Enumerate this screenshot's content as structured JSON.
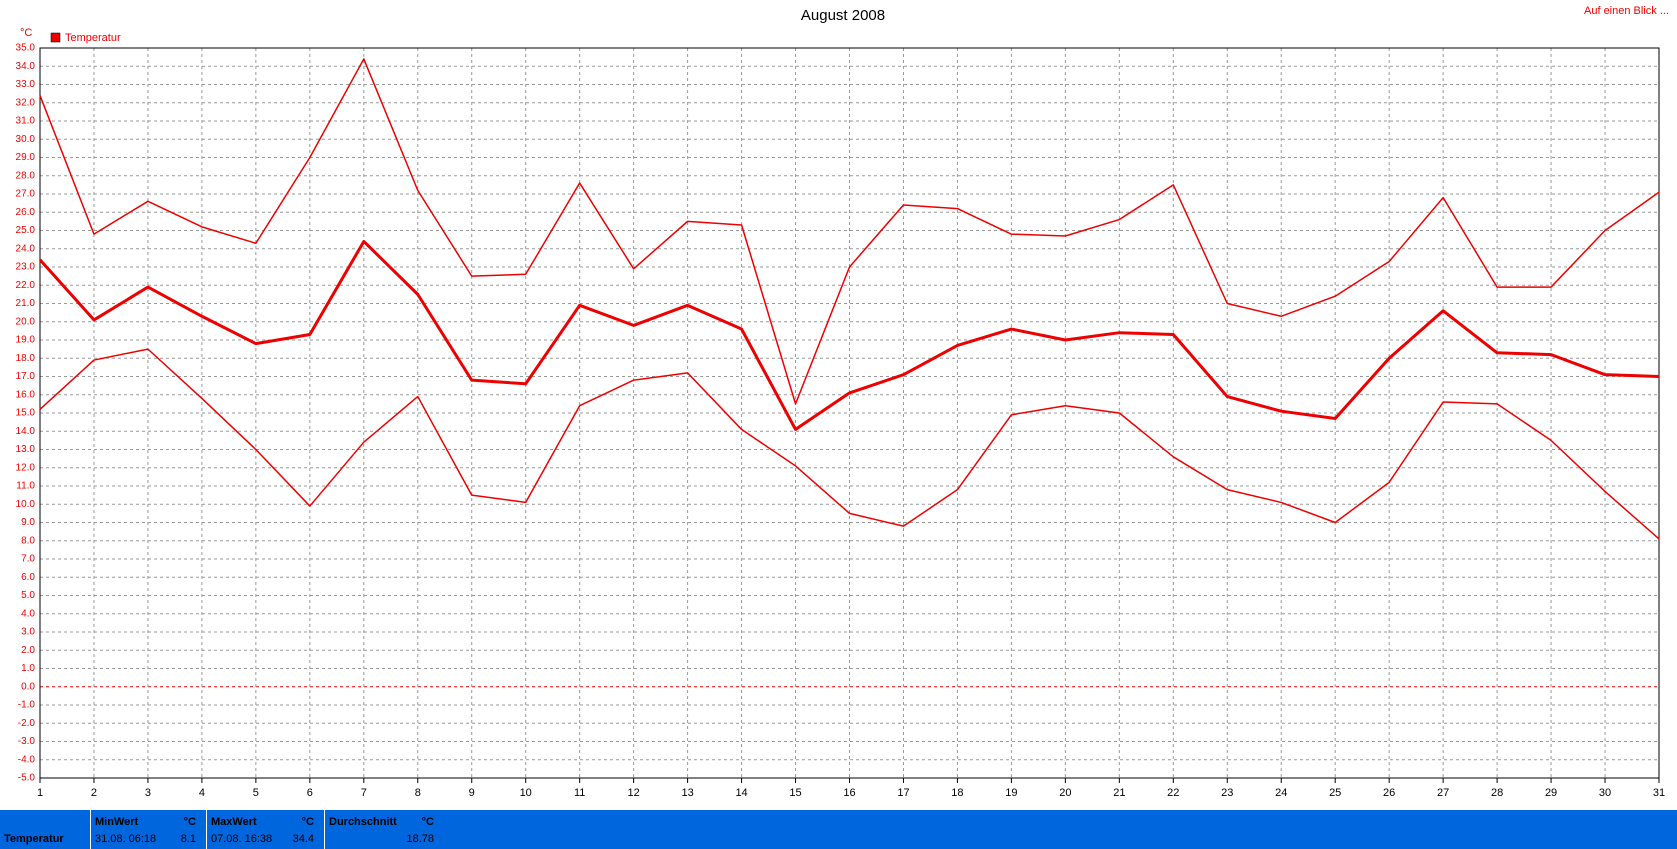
{
  "chart_data": {
    "type": "line",
    "title": "August 2008",
    "y_label": "°C",
    "legend": "Temperatur",
    "legend_color": "#ee0000",
    "grid": true,
    "x": [
      1,
      2,
      3,
      4,
      5,
      6,
      7,
      8,
      9,
      10,
      11,
      12,
      13,
      14,
      15,
      16,
      17,
      18,
      19,
      20,
      21,
      22,
      23,
      24,
      25,
      26,
      27,
      28,
      29,
      30,
      31
    ],
    "xlim": [
      1,
      31
    ],
    "xticks": [
      1,
      2,
      3,
      4,
      5,
      6,
      7,
      8,
      9,
      10,
      11,
      12,
      13,
      14,
      15,
      16,
      17,
      18,
      19,
      20,
      21,
      22,
      23,
      24,
      25,
      26,
      27,
      28,
      29,
      30,
      31
    ],
    "ylim": [
      -5,
      35
    ],
    "yticks": [
      {
        "value": -5,
        "label": "-5.0"
      },
      {
        "value": -4,
        "label": "-4.0"
      },
      {
        "value": -3,
        "label": "-3.0"
      },
      {
        "value": -2,
        "label": "-2.0"
      },
      {
        "value": -1,
        "label": "-1.0"
      },
      {
        "value": 0,
        "label": "0.0"
      },
      {
        "value": 1,
        "label": "1.0"
      },
      {
        "value": 2,
        "label": "2.0"
      },
      {
        "value": 3,
        "label": "3.0"
      },
      {
        "value": 4,
        "label": "4.0"
      },
      {
        "value": 5,
        "label": "5.0"
      },
      {
        "value": 6,
        "label": "6.0"
      },
      {
        "value": 7,
        "label": "7.0"
      },
      {
        "value": 8,
        "label": "8.0"
      },
      {
        "value": 9,
        "label": "9.0"
      },
      {
        "value": 10,
        "label": "10.0"
      },
      {
        "value": 11,
        "label": "11.0"
      },
      {
        "value": 12,
        "label": "12.0"
      },
      {
        "value": 13,
        "label": "13.0"
      },
      {
        "value": 14,
        "label": "14.0"
      },
      {
        "value": 15,
        "label": "15.0"
      },
      {
        "value": 16,
        "label": "16.0"
      },
      {
        "value": 17,
        "label": "17.0"
      },
      {
        "value": 18,
        "label": "18.0"
      },
      {
        "value": 19,
        "label": "19.0"
      },
      {
        "value": 20,
        "label": "20.0"
      },
      {
        "value": 21,
        "label": "21.0"
      },
      {
        "value": 22,
        "label": "22.0"
      },
      {
        "value": 23,
        "label": "23.0"
      },
      {
        "value": 24,
        "label": "24.0"
      },
      {
        "value": 25,
        "label": "25.0"
      },
      {
        "value": 26,
        "label": "26.0"
      },
      {
        "value": 27,
        "label": "27.0"
      },
      {
        "value": 28,
        "label": "28.0"
      },
      {
        "value": 29,
        "label": "29.0"
      },
      {
        "value": 30,
        "label": "30.0"
      },
      {
        "value": 31,
        "label": "31.0"
      },
      {
        "value": 32,
        "label": "32.0"
      },
      {
        "value": 33,
        "label": "33.0"
      },
      {
        "value": 34,
        "label": "34.0"
      },
      {
        "value": 35,
        "label": "35.0"
      }
    ],
    "series": [
      {
        "color": "#ee0000",
        "width": 1.5,
        "values": [
          32.4,
          24.8,
          26.6,
          25.2,
          24.3,
          29.0,
          34.4,
          27.2,
          22.5,
          22.6,
          27.6,
          22.9,
          25.5,
          25.3,
          15.5,
          23.0,
          26.4,
          26.2,
          24.8,
          24.7,
          25.6,
          27.5,
          21.0,
          20.3,
          21.4,
          23.3,
          26.8,
          21.9,
          21.9,
          25.0,
          27.1
        ]
      },
      {
        "color": "#ee0000",
        "width": 3,
        "values": [
          23.4,
          20.1,
          21.9,
          20.3,
          18.8,
          19.3,
          24.4,
          21.5,
          16.8,
          16.6,
          20.9,
          19.8,
          20.9,
          19.6,
          14.1,
          16.1,
          17.1,
          18.7,
          19.6,
          19.0,
          19.4,
          19.3,
          15.9,
          15.1,
          14.7,
          18.0,
          20.6,
          18.3,
          18.2,
          17.1,
          17.0
        ]
      },
      {
        "color": "#ee0000",
        "width": 1.5,
        "values": [
          15.2,
          17.9,
          18.5,
          15.8,
          13.0,
          9.9,
          13.4,
          15.9,
          10.5,
          10.1,
          15.4,
          16.8,
          17.2,
          14.1,
          12.1,
          9.5,
          8.8,
          10.8,
          14.9,
          15.4,
          15.0,
          12.6,
          10.8,
          10.1,
          9.0,
          11.2,
          15.6,
          15.5,
          13.5,
          10.7,
          8.1
        ]
      }
    ]
  },
  "link": "Auf einen Blick ...",
  "stats": {
    "label": "Temperatur",
    "columns": [
      {
        "title": "MinWert",
        "unit": "°C",
        "time": "31.08. 06:18",
        "value": 8.1
      },
      {
        "title": "MaxWert",
        "unit": "°C",
        "time": "07.08. 16:38",
        "value": 34.4
      },
      {
        "title": "Durchschnitt",
        "unit": "°C",
        "value": 18.78
      }
    ]
  }
}
